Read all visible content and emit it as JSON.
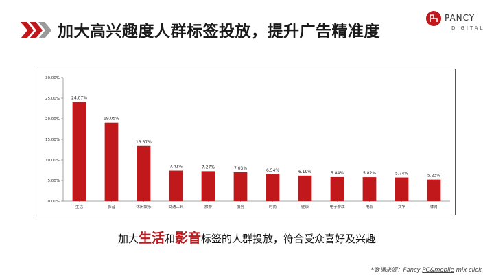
{
  "header": {
    "title": "加大高兴趣度人群标签投放，提升广告精准度",
    "accent_color": "#c0181b"
  },
  "logo": {
    "name": "PANCY",
    "sub": "DIGITAL"
  },
  "chart_data": {
    "type": "bar",
    "categories": [
      "生活",
      "影音",
      "休闲娱乐",
      "交通工具",
      "旅游",
      "服务",
      "时尚",
      "健康",
      "电子游戏",
      "电影",
      "文学",
      "体育"
    ],
    "values": [
      24.07,
      19.05,
      13.37,
      7.41,
      7.27,
      7.03,
      6.54,
      6.19,
      5.84,
      5.82,
      5.74,
      5.23
    ],
    "value_labels": [
      "24.07%",
      "19.05%",
      "13.37%",
      "7.41%",
      "7.27%",
      "7.03%",
      "6.54%",
      "6.19%",
      "5.84%",
      "5.82%",
      "5.74%",
      "5.23%"
    ],
    "y_ticks": [
      0,
      5,
      10,
      15,
      20,
      25,
      30
    ],
    "y_tick_labels": [
      "0.00%",
      "5.00%",
      "10.00%",
      "15.00%",
      "20.00%",
      "25.00%",
      "30.00%"
    ],
    "ylim": [
      0,
      30
    ],
    "grid": false,
    "bar_color": "#c0181b"
  },
  "caption": {
    "prefix": "加大",
    "highlight1": "生活",
    "middle": "和",
    "highlight2": "影音",
    "suffix": "标签的人群投放，符合受众喜好及兴趣"
  },
  "source": {
    "label": "*数据来源：Fancy ",
    "underlined": "PC&mobile",
    "tail": " mix click"
  }
}
